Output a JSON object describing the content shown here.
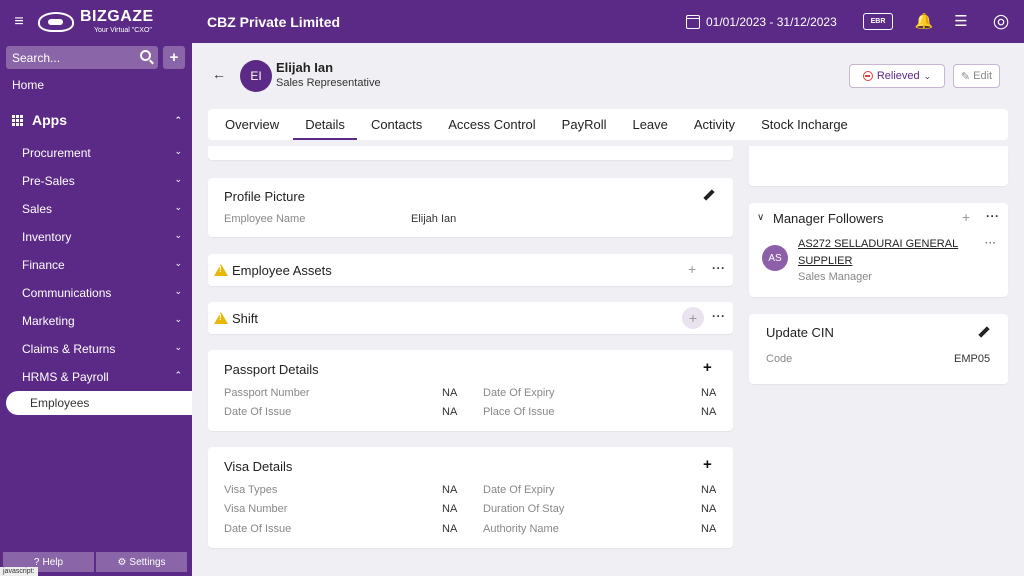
{
  "topbar": {
    "logo_name": "BIZGAZE",
    "logo_tagline": "Your Virtual \"CXO\"",
    "company": "CBZ Private Limited",
    "date_range": "01/01/2023 - 31/12/2023",
    "ebr_label": "EBR"
  },
  "sidebar": {
    "search_placeholder": "Search...",
    "home": "Home",
    "apps": "Apps",
    "items": [
      {
        "label": "Procurement"
      },
      {
        "label": "Pre-Sales"
      },
      {
        "label": "Sales"
      },
      {
        "label": "Inventory"
      },
      {
        "label": "Finance"
      },
      {
        "label": "Communications"
      },
      {
        "label": "Marketing"
      },
      {
        "label": "Claims & Returns"
      },
      {
        "label": "HRMS & Payroll"
      }
    ],
    "active_item": "Employees",
    "help": "Help",
    "settings": "Settings",
    "status": "javascript:"
  },
  "employee": {
    "initials": "EI",
    "name": "Elijah Ian",
    "role": "Sales Representative",
    "status_button": "Relieved",
    "edit_button": "Edit"
  },
  "tabs": [
    "Overview",
    "Details",
    "Contacts",
    "Access Control",
    "PayRoll",
    "Leave",
    "Activity",
    "Stock Incharge"
  ],
  "profile_picture": {
    "title": "Profile Picture",
    "employee_name_label": "Employee Name",
    "employee_name_value": "Elijah Ian"
  },
  "employee_assets": {
    "title": "Employee Assets"
  },
  "shift": {
    "title": "Shift"
  },
  "passport": {
    "title": "Passport Details",
    "passport_number_label": "Passport Number",
    "passport_number_value": "NA",
    "date_of_expiry_label": "Date Of Expiry",
    "date_of_expiry_value": "NA",
    "date_of_issue_label": "Date Of Issue",
    "date_of_issue_value": "NA",
    "place_of_issue_label": "Place Of Issue",
    "place_of_issue_value": "NA"
  },
  "visa": {
    "title": "Visa Details",
    "visa_types_label": "Visa Types",
    "visa_types_value": "NA",
    "date_of_expiry_label": "Date Of Expiry",
    "date_of_expiry_value": "NA",
    "visa_number_label": "Visa Number",
    "visa_number_value": "NA",
    "duration_of_stay_label": "Duration Of Stay",
    "duration_of_stay_value": "NA",
    "date_of_issue_label": "Date Of Issue",
    "date_of_issue_value": "NA",
    "authority_name_label": "Authority Name",
    "authority_name_value": "NA"
  },
  "manager_followers": {
    "title": "Manager Followers",
    "follower_initials": "AS",
    "follower_name": "AS272 SELLADURAI GENERAL SUPPLIER",
    "follower_role": "Sales Manager"
  },
  "update_cin": {
    "title": "Update CIN",
    "code_label": "Code",
    "code_value": "EMP05"
  },
  "glyphs": {
    "hamburger": "≡",
    "back": "←",
    "chevron_down": "⌄",
    "chevron_up": "⌃",
    "plus": "+",
    "dots": "···",
    "bell": "🔔",
    "list": "☰",
    "user": "◎",
    "help_icon": "?",
    "gear": "⚙",
    "collapse": "∨"
  },
  "colors": {
    "brand": "#5b2a86",
    "warning": "#e8b80a",
    "danger": "#e23d3d"
  }
}
